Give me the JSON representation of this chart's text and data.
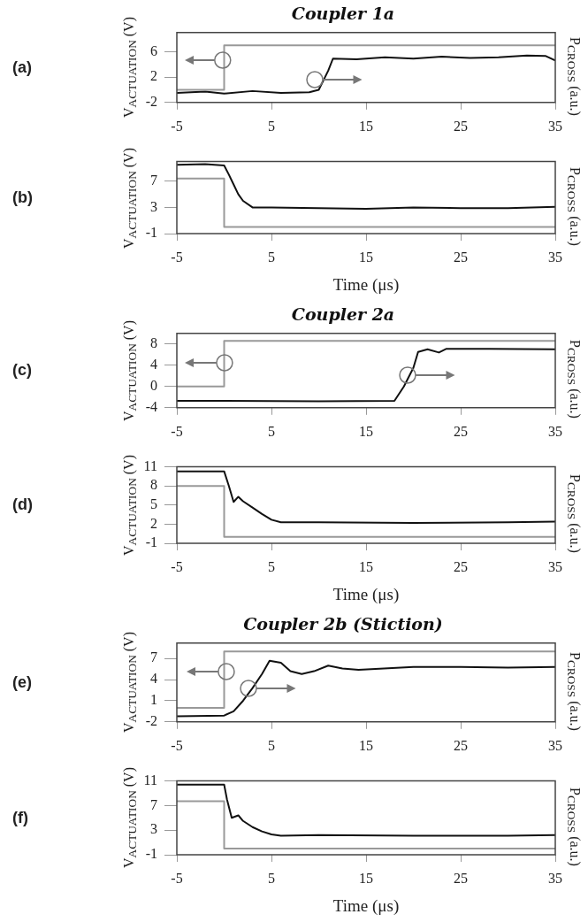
{
  "chart_data": [
    {
      "type": "line",
      "title": "Coupler 1a",
      "ylabel": "V$_{ACTUATION}$ (V)",
      "y2label": "P$_{CROSS}$ (a.u.)",
      "annotations": [
        "(a)"
      ],
      "xlim": [
        -5,
        35
      ],
      "xticks": [
        -5,
        5,
        15,
        25,
        35
      ],
      "ylim": [
        -2,
        9
      ],
      "yticks": [
        -2,
        2,
        6
      ],
      "marker": "none",
      "line_style": "solid",
      "series": [
        {
          "color": "#999999",
          "x": [
            -5,
            0,
            0,
            35
          ],
          "values": [
            0,
            0,
            7,
            7
          ]
        },
        {
          "color": "#111111",
          "x": [
            -5,
            -2,
            0,
            3,
            6,
            9,
            10,
            11,
            11.5,
            14,
            17,
            20,
            23,
            26,
            29,
            32,
            34,
            35
          ],
          "values": [
            -0.5,
            -0.3,
            -0.6,
            -0.2,
            -0.5,
            -0.4,
            0,
            3,
            4.9,
            4.8,
            5.1,
            4.9,
            5.2,
            5,
            5.1,
            5.4,
            5.3,
            4.6
          ]
        }
      ]
    },
    {
      "type": "line",
      "xlabel": "Time (μs)",
      "ylabel": "V$_{ACTUATION}$ (V)",
      "y2label": "P$_{CROSS}$ (a.u.)",
      "annotations": [
        "(b)"
      ],
      "xlim": [
        -5,
        35
      ],
      "xticks": [
        -5,
        5,
        15,
        25,
        35
      ],
      "ylim": [
        -1,
        10
      ],
      "yticks": [
        -1,
        3,
        7
      ],
      "marker": "none",
      "line_style": "solid",
      "series": [
        {
          "color": "#999999",
          "x": [
            -5,
            0,
            0,
            35
          ],
          "values": [
            7.4,
            7.4,
            0,
            0
          ]
        },
        {
          "color": "#111111",
          "x": [
            -5,
            -2,
            0,
            0.5,
            1,
            1.5,
            2,
            3,
            5,
            10,
            15,
            20,
            25,
            30,
            35
          ],
          "values": [
            9.5,
            9.6,
            9.4,
            8,
            6.5,
            5,
            4,
            3,
            3,
            2.9,
            2.8,
            3,
            2.9,
            2.9,
            3.1
          ]
        }
      ]
    },
    {
      "type": "line",
      "title": "Coupler 2a",
      "ylabel": "V$_{ACTUATION}$ (V)",
      "y2label": "P$_{CROSS}$ (a.u.)",
      "annotations": [
        "(c)"
      ],
      "xlim": [
        -5,
        35
      ],
      "xticks": [
        -5,
        5,
        15,
        25,
        35
      ],
      "ylim": [
        -4,
        10
      ],
      "yticks": [
        -4,
        0,
        4,
        8
      ],
      "marker": "none",
      "line_style": "solid",
      "series": [
        {
          "color": "#999999",
          "x": [
            -5,
            0,
            0,
            35
          ],
          "values": [
            0,
            0,
            8.6,
            8.6
          ]
        },
        {
          "color": "#111111",
          "x": [
            -5,
            0,
            10,
            18,
            19,
            20,
            20.5,
            21.5,
            22.7,
            23.5,
            28,
            35
          ],
          "values": [
            -2.7,
            -2.7,
            -2.8,
            -2.7,
            0,
            3.5,
            6.5,
            7,
            6.4,
            7.1,
            7.1,
            7
          ]
        }
      ]
    },
    {
      "type": "line",
      "xlabel": "Time (μs)",
      "ylabel": "V$_{ACTUATION}$ (V)",
      "y2label": "P$_{CROSS}$ (a.u.)",
      "annotations": [
        "(d)"
      ],
      "xlim": [
        -5,
        35
      ],
      "xticks": [
        -5,
        5,
        15,
        25,
        35
      ],
      "ylim": [
        -1,
        11
      ],
      "yticks": [
        -1,
        2,
        5,
        8,
        11
      ],
      "marker": "none",
      "line_style": "solid",
      "series": [
        {
          "color": "#999999",
          "x": [
            -5,
            0,
            0,
            35
          ],
          "values": [
            8,
            8,
            0,
            0
          ]
        },
        {
          "color": "#111111",
          "x": [
            -5,
            0,
            0.5,
            1,
            1.5,
            2,
            3,
            4,
            5,
            6,
            10,
            20,
            30,
            35
          ],
          "values": [
            10.3,
            10.3,
            8,
            5.5,
            6.3,
            5.6,
            4.6,
            3.6,
            2.7,
            2.3,
            2.3,
            2.2,
            2.3,
            2.4
          ]
        }
      ]
    },
    {
      "type": "line",
      "title": "Coupler 2b (Stiction)",
      "ylabel": "V$_{ACTUATION}$ (V)",
      "y2label": "P$_{CROSS}$ (a.u.)",
      "annotations": [
        "(e)"
      ],
      "xlim": [
        -5,
        35
      ],
      "xticks": [
        -5,
        5,
        15,
        25,
        35
      ],
      "ylim": [
        -2,
        9.2
      ],
      "yticks": [
        -2,
        1,
        4,
        7
      ],
      "marker": "none",
      "line_style": "solid",
      "series": [
        {
          "color": "#999999",
          "x": [
            -5,
            0,
            0,
            35
          ],
          "values": [
            0,
            0,
            8,
            8
          ]
        },
        {
          "color": "#111111",
          "x": [
            -5,
            0,
            1,
            2,
            3,
            4,
            4.8,
            6,
            7,
            8.2,
            9.5,
            11,
            12.5,
            14.2,
            20,
            25,
            30,
            35
          ],
          "values": [
            -1.2,
            -1.1,
            -0.5,
            1,
            2.8,
            4.8,
            6.7,
            6.4,
            5.2,
            4.8,
            5.2,
            6,
            5.6,
            5.4,
            5.8,
            5.8,
            5.7,
            5.8
          ]
        }
      ]
    },
    {
      "type": "line",
      "xlabel": "Time (μs)",
      "ylabel": "V$_{ACTUATION}$ (V)",
      "y2label": "P$_{CROSS}$ (a.u.)",
      "annotations": [
        "(f)"
      ],
      "xlim": [
        -5,
        35
      ],
      "xticks": [
        -5,
        5,
        15,
        25,
        35
      ],
      "ylim": [
        -1,
        11
      ],
      "yticks": [
        -1,
        3,
        7,
        11
      ],
      "marker": "none",
      "line_style": "solid",
      "series": [
        {
          "color": "#999999",
          "x": [
            -5,
            0,
            0,
            35
          ],
          "values": [
            7.7,
            7.7,
            0,
            0
          ]
        },
        {
          "color": "#111111",
          "x": [
            -5,
            0,
            0.3,
            0.8,
            1.5,
            2,
            3,
            4,
            5,
            6,
            10,
            20,
            30,
            35
          ],
          "values": [
            10.4,
            10.4,
            8,
            5,
            5.4,
            4.5,
            3.5,
            2.8,
            2.3,
            2.1,
            2.2,
            2.1,
            2.1,
            2.2
          ]
        }
      ]
    }
  ]
}
